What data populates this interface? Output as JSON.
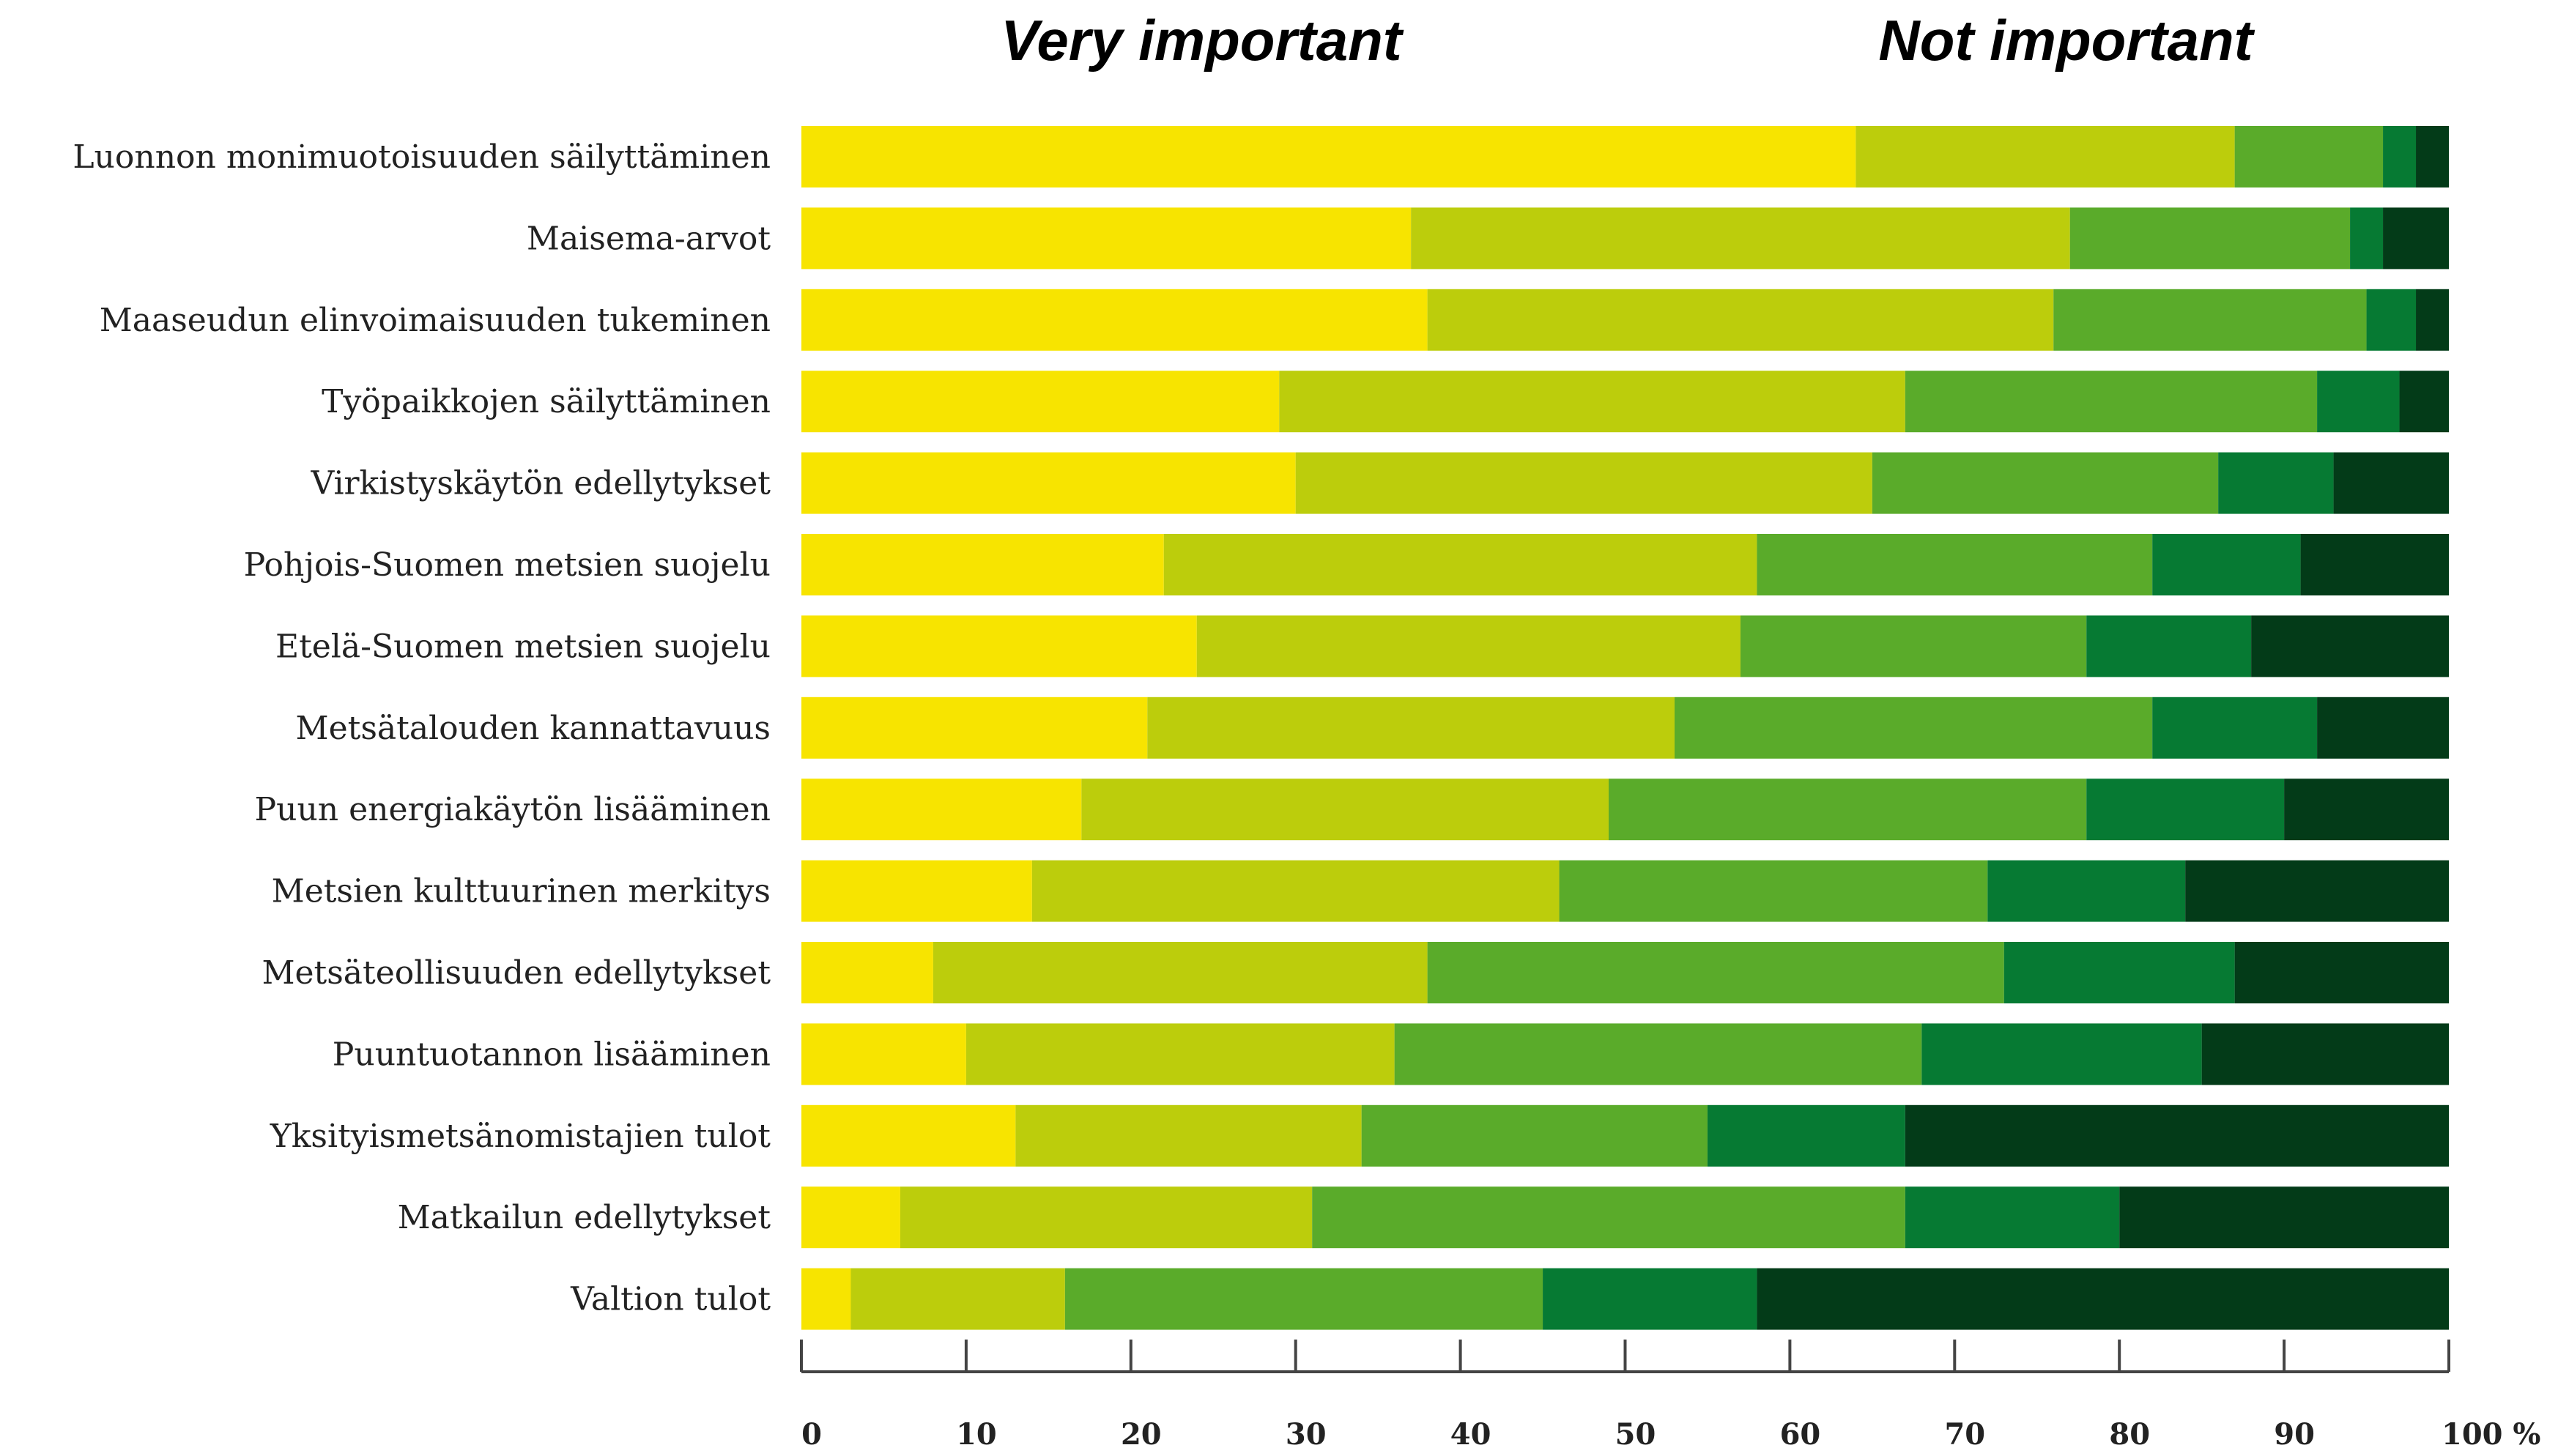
{
  "chart_data": {
    "type": "bar",
    "orientation": "horizontal",
    "stacked": true,
    "header_labels": [
      "Very important",
      "Not important"
    ],
    "categories": [
      "Luonnon monimuotoisuuden säilyttäminen",
      "Maisema-arvot",
      "Maaseudun elinvoimaisuuden tukeminen",
      "Työpaikkojen säilyttäminen",
      "Virkistyskäytön edellytykset",
      "Pohjois-Suomen metsien suojelu",
      "Etelä-Suomen metsien suojelu",
      "Metsätalouden kannattavuus",
      "Puun energiakäytön lisääminen",
      "Metsien kulttuurinen merkitys",
      "Metsäteollisuuden edellytykset",
      "Puuntuotannon lisääminen",
      "Yksityismetsänomistajien tulot",
      "Matkailun edellytykset",
      "Valtion tulot"
    ],
    "series": [
      {
        "values": [
          64,
          37,
          38,
          29,
          30,
          22,
          24,
          21,
          17,
          14,
          8,
          10,
          13,
          6,
          3
        ]
      },
      {
        "values": [
          23,
          40,
          38,
          38,
          35,
          36,
          33,
          32,
          32,
          32,
          30,
          26,
          21,
          25,
          13
        ]
      },
      {
        "values": [
          9,
          17,
          19,
          25,
          21,
          24,
          21,
          29,
          29,
          26,
          35,
          32,
          21,
          36,
          29
        ]
      },
      {
        "values": [
          2,
          2,
          3,
          5,
          7,
          9,
          10,
          10,
          12,
          12,
          14,
          17,
          12,
          13,
          13
        ]
      },
      {
        "values": [
          2,
          4,
          2,
          3,
          7,
          9,
          12,
          8,
          10,
          16,
          13,
          15,
          33,
          20,
          42
        ]
      }
    ],
    "colors": [
      "#f7e400",
      "#bccd0c",
      "#5aab2a",
      "#067a33",
      "#033b18"
    ],
    "x_ticks": [
      "0",
      "10",
      "20",
      "30",
      "40",
      "50",
      "60",
      "70",
      "80",
      "90",
      "100 %"
    ],
    "xlim": [
      0,
      100
    ],
    "grid": false,
    "legend": "none"
  }
}
